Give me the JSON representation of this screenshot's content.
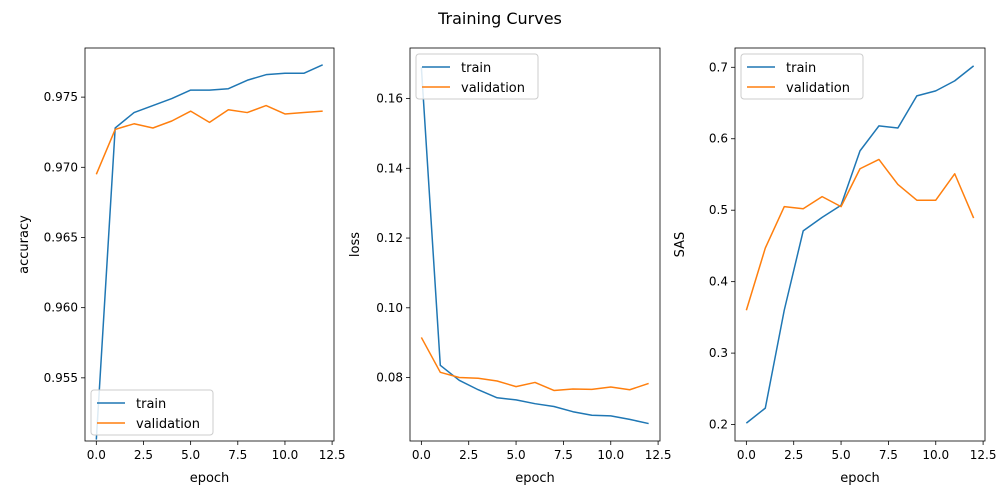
{
  "figure": {
    "title": "Training Curves"
  },
  "colors": {
    "train": "#1f77b4",
    "validation": "#ff7f0e"
  },
  "chart_data": [
    {
      "type": "line",
      "xlabel": "epoch",
      "ylabel": "accuracy",
      "xlim": [
        -0.6,
        12.6
      ],
      "ylim": [
        0.9505,
        0.9785
      ],
      "xticks": [
        0.0,
        2.5,
        5.0,
        7.5,
        10.0,
        12.5
      ],
      "xtick_labels": [
        "0.0",
        "2.5",
        "5.0",
        "7.5",
        "10.0",
        "12.5"
      ],
      "yticks": [
        0.955,
        0.96,
        0.965,
        0.97,
        0.975
      ],
      "ytick_labels": [
        "0.955",
        "0.960",
        "0.965",
        "0.970",
        "0.975"
      ],
      "legend": "lower-left",
      "grid": false,
      "x": [
        0,
        1,
        2,
        3,
        4,
        5,
        6,
        7,
        8,
        9,
        10,
        11,
        12
      ],
      "series": [
        {
          "name": "train",
          "values": [
            0.9506,
            0.9728,
            0.9739,
            0.9744,
            0.9749,
            0.9755,
            0.9755,
            0.9756,
            0.9762,
            0.9766,
            0.9767,
            0.9767,
            0.9773
          ]
        },
        {
          "name": "validation",
          "values": [
            0.9695,
            0.9727,
            0.9731,
            0.9728,
            0.9733,
            0.974,
            0.9732,
            0.9741,
            0.9739,
            0.9744,
            0.9738,
            0.9739,
            0.974
          ]
        }
      ]
    },
    {
      "type": "line",
      "xlabel": "epoch",
      "ylabel": "loss",
      "xlim": [
        -0.6,
        12.6
      ],
      "ylim": [
        0.0618,
        0.1745
      ],
      "xticks": [
        0.0,
        2.5,
        5.0,
        7.5,
        10.0,
        12.5
      ],
      "xtick_labels": [
        "0.0",
        "2.5",
        "5.0",
        "7.5",
        "10.0",
        "12.5"
      ],
      "yticks": [
        0.08,
        0.1,
        0.12,
        0.14,
        0.16
      ],
      "ytick_labels": [
        "0.08",
        "0.10",
        "0.12",
        "0.14",
        "0.16"
      ],
      "legend": "top-left",
      "grid": false,
      "x": [
        0,
        1,
        2,
        3,
        4,
        5,
        6,
        7,
        8,
        9,
        10,
        11,
        12
      ],
      "series": [
        {
          "name": "train",
          "values": [
            0.169,
            0.0835,
            0.0792,
            0.0765,
            0.0742,
            0.0736,
            0.0725,
            0.0717,
            0.0702,
            0.0692,
            0.069,
            0.068,
            0.0668
          ]
        },
        {
          "name": "validation",
          "values": [
            0.0915,
            0.0815,
            0.08,
            0.0798,
            0.079,
            0.0774,
            0.0786,
            0.0763,
            0.0767,
            0.0766,
            0.0773,
            0.0765,
            0.0783
          ]
        }
      ]
    },
    {
      "type": "line",
      "xlabel": "epoch",
      "ylabel": "SAS",
      "xlim": [
        -0.6,
        12.6
      ],
      "ylim": [
        0.177,
        0.727
      ],
      "xticks": [
        0.0,
        2.5,
        5.0,
        7.5,
        10.0,
        12.5
      ],
      "xtick_labels": [
        "0.0",
        "2.5",
        "5.0",
        "7.5",
        "10.0",
        "12.5"
      ],
      "yticks": [
        0.2,
        0.3,
        0.4,
        0.5,
        0.6,
        0.7
      ],
      "ytick_labels": [
        "0.2",
        "0.3",
        "0.4",
        "0.5",
        "0.6",
        "0.7"
      ],
      "legend": "top-left",
      "grid": false,
      "x": [
        0,
        1,
        2,
        3,
        4,
        5,
        6,
        7,
        8,
        9,
        10,
        11,
        12
      ],
      "series": [
        {
          "name": "train",
          "values": [
            0.202,
            0.223,
            0.36,
            0.471,
            0.49,
            0.507,
            0.583,
            0.618,
            0.615,
            0.66,
            0.667,
            0.681,
            0.702
          ]
        },
        {
          "name": "validation",
          "values": [
            0.36,
            0.447,
            0.505,
            0.502,
            0.519,
            0.505,
            0.558,
            0.571,
            0.536,
            0.514,
            0.514,
            0.551,
            0.489
          ]
        }
      ]
    }
  ]
}
